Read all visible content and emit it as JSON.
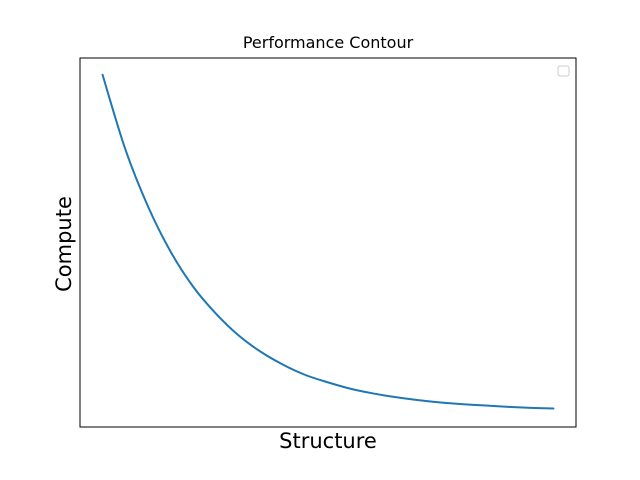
{
  "chart_data": {
    "type": "line",
    "title": "Performance Contour",
    "xlabel": "Structure",
    "ylabel": "Compute",
    "xlim": [
      -0.05,
      1.05
    ],
    "ylim": [
      -0.05,
      1.05
    ],
    "xticks": [],
    "yticks": [],
    "grid": false,
    "legend": "top-right",
    "series": [
      {
        "color": "#1f77b4",
        "x": [
          0.0,
          0.05,
          0.1,
          0.15,
          0.2,
          0.25,
          0.3,
          0.35,
          0.4,
          0.45,
          0.5,
          0.55,
          0.6,
          0.65,
          0.7,
          0.75,
          0.8,
          0.85,
          0.9,
          0.95,
          1.0
        ],
        "y": [
          1.0,
          0.78,
          0.61,
          0.475,
          0.37,
          0.29,
          0.225,
          0.175,
          0.136,
          0.105,
          0.083,
          0.064,
          0.05,
          0.039,
          0.03,
          0.023,
          0.018,
          0.014,
          0.01,
          0.007,
          0.005
        ]
      }
    ]
  }
}
